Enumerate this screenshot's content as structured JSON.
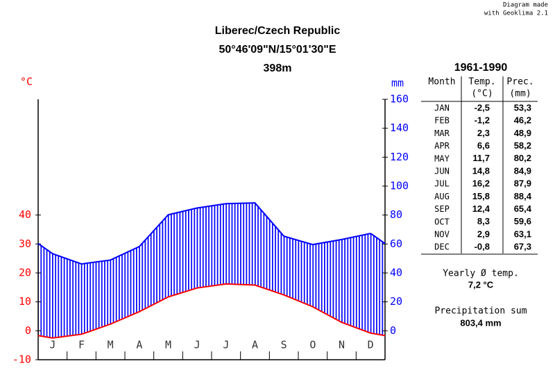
{
  "chart_data": {
    "type": "climate",
    "title": "Liberec/Czech Republic",
    "subtitle": "50°46'09\"N/15°01'30\"E",
    "elevation": "398m",
    "credit": [
      "Diagram made",
      "with Geoklima 2.1"
    ],
    "ylabel": "°C",
    "y2label": "mm",
    "categories": [
      "J",
      "F",
      "M",
      "A",
      "M",
      "J",
      "J",
      "A",
      "S",
      "O",
      "N",
      "D"
    ],
    "series": [
      {
        "color": "#ff0000",
        "values": [
          -2.5,
          -1.2,
          2.3,
          6.6,
          11.7,
          14.8,
          16.2,
          15.8,
          12.4,
          8.3,
          2.9,
          -0.8
        ],
        "value_labels": [
          "-2,5",
          "-1,2",
          "2,3",
          "6,6",
          "11,7",
          "14,8",
          "16,2",
          "15,8",
          "12,4",
          "8,3",
          "2,9",
          "-0,8"
        ]
      },
      {
        "color": "#0000ff",
        "axis": "y2",
        "values": [
          53.3,
          46.2,
          48.9,
          58.2,
          80.2,
          84.9,
          87.9,
          88.4,
          65.4,
          59.6,
          63.1,
          67.3
        ],
        "value_labels": [
          "53,3",
          "46,2",
          "48,9",
          "58,2",
          "80,2",
          "84,9",
          "87,9",
          "88,4",
          "65,4",
          "59,6",
          "63,1",
          "67,3"
        ]
      }
    ],
    "ylim": [
      -10,
      80
    ],
    "yticks": [
      -10,
      0,
      10,
      20,
      30,
      40
    ],
    "y2lim": [
      -20,
      160
    ],
    "y2ticks": [
      0,
      20,
      40,
      60,
      80,
      100,
      120,
      140,
      160
    ]
  },
  "table": {
    "period": "1961-1990",
    "header": [
      "Month",
      "Temp.",
      "Prec."
    ],
    "units": [
      "(°C)",
      "(mm)"
    ],
    "months": [
      "JAN",
      "FEB",
      "MAR",
      "APR",
      "MAY",
      "JUN",
      "JUL",
      "AUG",
      "SEP",
      "OCT",
      "NOV",
      "DEC"
    ]
  },
  "summary": {
    "temp_label": "Yearly Ø temp.",
    "temp_value": "7,2 °C",
    "prec_label": "Precipitation sum",
    "prec_value": "803,4 mm"
  }
}
